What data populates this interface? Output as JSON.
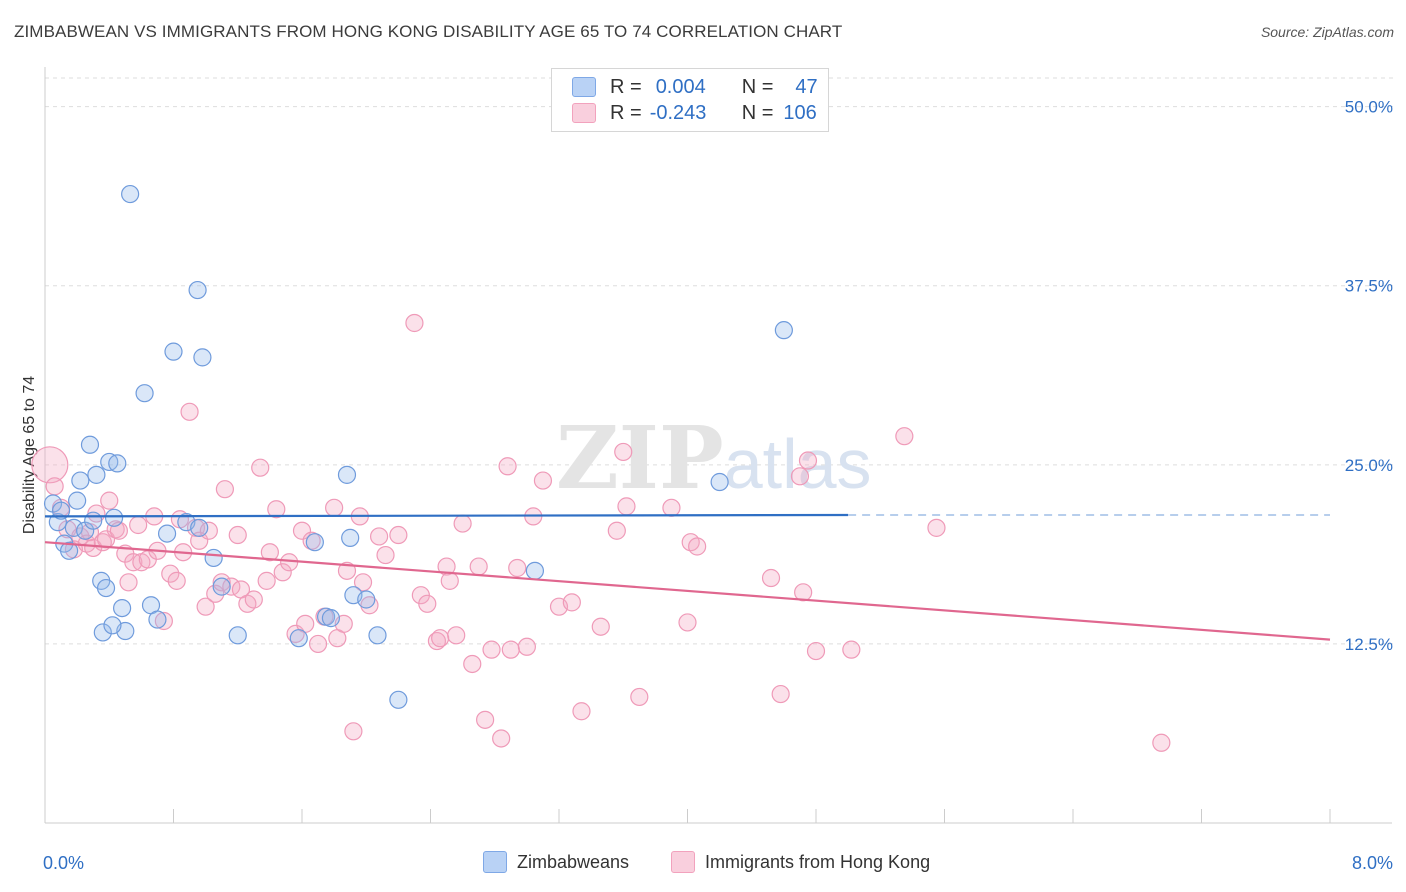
{
  "title": "ZIMBABWEAN VS IMMIGRANTS FROM HONG KONG DISABILITY AGE 65 TO 74 CORRELATION CHART",
  "source": "Source: ZipAtlas.com",
  "watermark": {
    "part1": "ZIP",
    "part2": "atlas"
  },
  "legend": {
    "rows": [
      {
        "r_label": "R =",
        "r_value": "0.004",
        "n_label": "N =",
        "n_value": "47"
      },
      {
        "r_label": "R =",
        "r_value": "-0.243",
        "n_label": "N =",
        "n_value": "106"
      }
    ]
  },
  "chart_data": {
    "type": "scatter",
    "title": "ZIMBABWEAN VS IMMIGRANTS FROM HONG KONG DISABILITY AGE 65 TO 74 CORRELATION CHART",
    "xlabel": "",
    "ylabel": "Disability Age 65 to 74",
    "xlim": [
      0,
      8
    ],
    "ylim": [
      0,
      52
    ],
    "x_tick_labels": [
      "0.0%",
      "8.0%"
    ],
    "y_ticks": [
      12.5,
      25.0,
      37.5,
      50.0
    ],
    "y_tick_labels": [
      "12.5%",
      "25.0%",
      "37.5%",
      "50.0%"
    ],
    "grid": true,
    "legend_position": "bottom",
    "colors": {
      "Zimbabweans": "#7fa8e6",
      "Immigrants from Hong Kong": "#f2a2bd",
      "blue_line": "#2f6fc4",
      "pink_line": "#e0678f"
    },
    "series": [
      {
        "name": "Zimbabweans",
        "trend": {
          "x": [
            0,
            5.0
          ],
          "y": [
            21.4,
            21.5
          ],
          "dashed_to_x": 8.0
        },
        "points": [
          [
            0.05,
            22.3
          ],
          [
            0.08,
            21.0
          ],
          [
            0.1,
            21.8
          ],
          [
            0.12,
            19.5
          ],
          [
            0.15,
            19.0
          ],
          [
            0.18,
            20.6
          ],
          [
            0.2,
            22.5
          ],
          [
            0.22,
            23.9
          ],
          [
            0.25,
            20.4
          ],
          [
            0.28,
            26.4
          ],
          [
            0.3,
            21.1
          ],
          [
            0.32,
            24.3
          ],
          [
            0.35,
            16.9
          ],
          [
            0.36,
            13.3
          ],
          [
            0.38,
            16.4
          ],
          [
            0.4,
            25.2
          ],
          [
            0.43,
            21.3
          ],
          [
            0.45,
            25.1
          ],
          [
            0.48,
            15.0
          ],
          [
            0.5,
            13.4
          ],
          [
            0.53,
            43.9
          ],
          [
            0.62,
            30.0
          ],
          [
            0.66,
            15.2
          ],
          [
            0.7,
            14.2
          ],
          [
            0.76,
            20.2
          ],
          [
            0.8,
            32.9
          ],
          [
            0.88,
            21.0
          ],
          [
            0.95,
            37.2
          ],
          [
            0.96,
            20.6
          ],
          [
            0.98,
            32.5
          ],
          [
            1.05,
            18.5
          ],
          [
            1.1,
            16.5
          ],
          [
            1.2,
            13.1
          ],
          [
            1.58,
            12.9
          ],
          [
            1.68,
            19.6
          ],
          [
            1.75,
            14.4
          ],
          [
            1.88,
            24.3
          ],
          [
            1.9,
            19.9
          ],
          [
            1.92,
            15.9
          ],
          [
            2.0,
            15.6
          ],
          [
            2.07,
            13.1
          ],
          [
            2.2,
            8.6
          ],
          [
            3.05,
            17.6
          ],
          [
            4.2,
            23.8
          ],
          [
            4.6,
            34.4
          ],
          [
            1.78,
            14.3
          ],
          [
            0.42,
            13.8
          ]
        ]
      },
      {
        "name": "Immigrants from Hong Kong",
        "trend": {
          "x": [
            0,
            8.0
          ],
          "y": [
            19.6,
            12.8
          ]
        },
        "points": [
          [
            0.03,
            25.0
          ],
          [
            0.06,
            23.5
          ],
          [
            0.1,
            22.0
          ],
          [
            0.14,
            20.5
          ],
          [
            0.18,
            19.1
          ],
          [
            0.22,
            20.0
          ],
          [
            0.26,
            19.5
          ],
          [
            0.28,
            20.3
          ],
          [
            0.3,
            19.2
          ],
          [
            0.32,
            21.6
          ],
          [
            0.36,
            19.6
          ],
          [
            0.38,
            19.8
          ],
          [
            0.4,
            22.5
          ],
          [
            0.44,
            20.5
          ],
          [
            0.46,
            20.4
          ],
          [
            0.5,
            18.8
          ],
          [
            0.52,
            16.8
          ],
          [
            0.55,
            18.2
          ],
          [
            0.58,
            20.8
          ],
          [
            0.6,
            18.2
          ],
          [
            0.64,
            18.4
          ],
          [
            0.68,
            21.4
          ],
          [
            0.7,
            19.0
          ],
          [
            0.74,
            14.1
          ],
          [
            0.78,
            17.4
          ],
          [
            0.82,
            16.9
          ],
          [
            0.84,
            21.2
          ],
          [
            0.86,
            18.9
          ],
          [
            0.9,
            28.7
          ],
          [
            0.94,
            20.6
          ],
          [
            0.96,
            19.7
          ],
          [
            1.0,
            15.1
          ],
          [
            1.02,
            20.4
          ],
          [
            1.06,
            16.0
          ],
          [
            1.1,
            16.8
          ],
          [
            1.12,
            23.3
          ],
          [
            1.16,
            16.5
          ],
          [
            1.2,
            20.1
          ],
          [
            1.22,
            16.3
          ],
          [
            1.26,
            15.3
          ],
          [
            1.3,
            15.6
          ],
          [
            1.34,
            24.8
          ],
          [
            1.38,
            16.9
          ],
          [
            1.4,
            18.9
          ],
          [
            1.44,
            21.9
          ],
          [
            1.48,
            17.5
          ],
          [
            1.52,
            18.2
          ],
          [
            1.56,
            13.2
          ],
          [
            1.6,
            20.4
          ],
          [
            1.62,
            13.9
          ],
          [
            1.66,
            19.7
          ],
          [
            1.7,
            12.5
          ],
          [
            1.74,
            14.4
          ],
          [
            1.8,
            22.0
          ],
          [
            1.82,
            12.9
          ],
          [
            1.86,
            13.9
          ],
          [
            1.88,
            17.6
          ],
          [
            1.92,
            6.4
          ],
          [
            1.96,
            21.4
          ],
          [
            1.98,
            16.8
          ],
          [
            2.02,
            15.2
          ],
          [
            2.08,
            20.0
          ],
          [
            2.12,
            18.7
          ],
          [
            2.2,
            20.1
          ],
          [
            2.3,
            34.9
          ],
          [
            2.34,
            15.9
          ],
          [
            2.38,
            15.3
          ],
          [
            2.44,
            12.7
          ],
          [
            2.46,
            12.9
          ],
          [
            2.5,
            17.9
          ],
          [
            2.52,
            16.9
          ],
          [
            2.56,
            13.1
          ],
          [
            2.6,
            20.9
          ],
          [
            2.66,
            11.1
          ],
          [
            2.7,
            17.9
          ],
          [
            2.74,
            7.2
          ],
          [
            2.78,
            12.1
          ],
          [
            2.84,
            5.9
          ],
          [
            2.88,
            24.9
          ],
          [
            2.9,
            12.1
          ],
          [
            2.94,
            17.8
          ],
          [
            3.0,
            12.3
          ],
          [
            3.04,
            21.4
          ],
          [
            3.1,
            23.9
          ],
          [
            3.2,
            15.1
          ],
          [
            3.28,
            15.4
          ],
          [
            3.34,
            7.8
          ],
          [
            3.46,
            13.7
          ],
          [
            3.56,
            20.4
          ],
          [
            3.6,
            25.9
          ],
          [
            3.62,
            22.1
          ],
          [
            3.7,
            8.8
          ],
          [
            3.9,
            22.0
          ],
          [
            4.0,
            14.0
          ],
          [
            4.02,
            19.6
          ],
          [
            4.06,
            19.3
          ],
          [
            4.52,
            17.1
          ],
          [
            4.58,
            9.0
          ],
          [
            4.7,
            24.2
          ],
          [
            4.72,
            16.1
          ],
          [
            4.75,
            25.3
          ],
          [
            4.8,
            12.0
          ],
          [
            5.02,
            12.1
          ],
          [
            5.35,
            27.0
          ],
          [
            5.55,
            20.6
          ],
          [
            6.95,
            5.6
          ]
        ]
      }
    ]
  },
  "bottom_legend": {
    "series1": "Zimbabweans",
    "series2": "Immigrants from Hong Kong"
  }
}
